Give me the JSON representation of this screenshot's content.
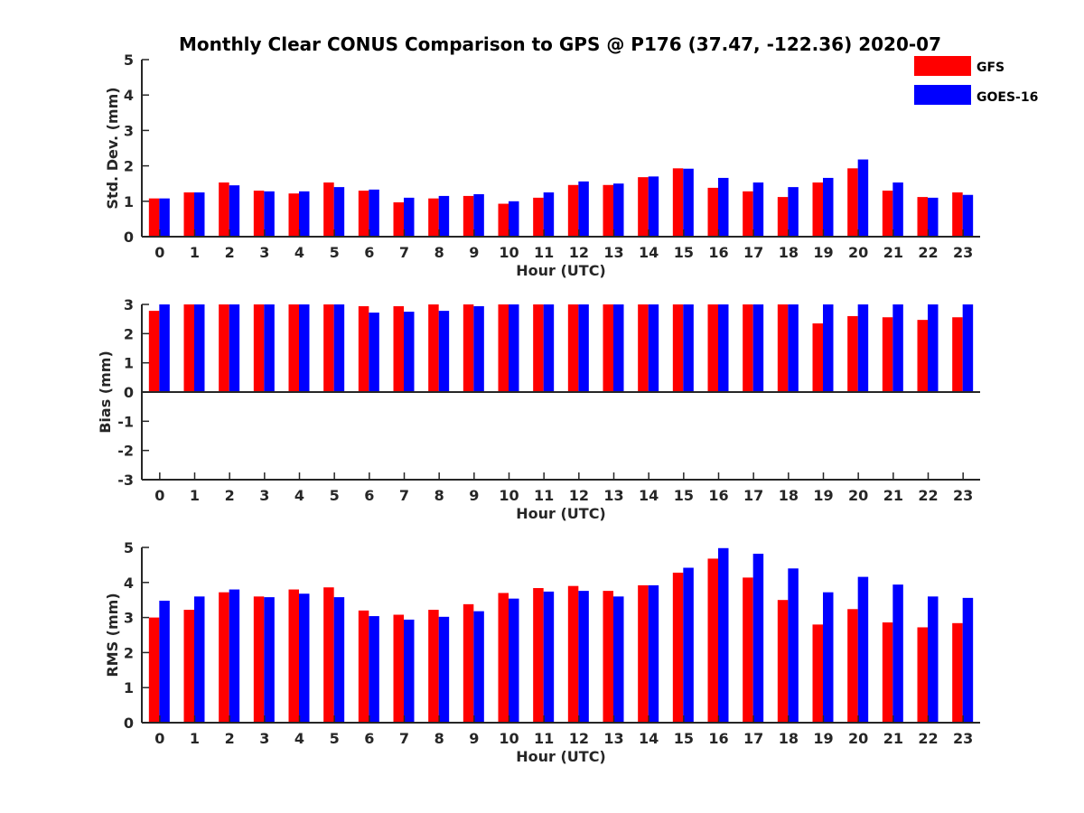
{
  "title": "Monthly Clear CONUS Comparison to GPS @ P176 (37.47, -122.36) 2020-07",
  "legend": {
    "placement": "top-right",
    "items": [
      {
        "label": "GFS",
        "color": "#ff0000"
      },
      {
        "label": "GOES-16",
        "color": "#0000ff"
      }
    ]
  },
  "chart_data": [
    {
      "type": "bar",
      "xlabel": "Hour (UTC)",
      "ylabel": "Std. Dev. (mm)",
      "ylim": [
        0,
        5
      ],
      "yticks": [
        "0",
        "1",
        "2",
        "3",
        "4",
        "5"
      ],
      "categories": [
        "0",
        "1",
        "2",
        "3",
        "4",
        "5",
        "6",
        "7",
        "8",
        "9",
        "10",
        "11",
        "12",
        "13",
        "14",
        "15",
        "16",
        "17",
        "18",
        "19",
        "20",
        "21",
        "22",
        "23"
      ],
      "series": [
        {
          "name": "GFS",
          "color": "#ff0000",
          "values": [
            1.08,
            1.25,
            1.53,
            1.3,
            1.22,
            1.53,
            1.3,
            0.97,
            1.08,
            1.15,
            0.93,
            1.1,
            1.46,
            1.46,
            1.68,
            1.93,
            1.38,
            1.28,
            1.12,
            1.53,
            1.93,
            1.3,
            1.12,
            1.25
          ]
        },
        {
          "name": "GOES-16",
          "color": "#0000ff",
          "values": [
            1.08,
            1.25,
            1.45,
            1.28,
            1.28,
            1.4,
            1.33,
            1.1,
            1.15,
            1.2,
            1.0,
            1.25,
            1.56,
            1.5,
            1.7,
            1.92,
            1.66,
            1.53,
            1.4,
            1.66,
            2.18,
            1.53,
            1.1,
            1.18
          ]
        }
      ]
    },
    {
      "type": "bar",
      "xlabel": "Hour (UTC)",
      "ylabel": "Bias (mm)",
      "ylim": [
        -3,
        3
      ],
      "yticks": [
        "-3",
        "-2",
        "-1",
        "0",
        "1",
        "2",
        "3"
      ],
      "categories": [
        "0",
        "1",
        "2",
        "3",
        "4",
        "5",
        "6",
        "7",
        "8",
        "9",
        "10",
        "11",
        "12",
        "13",
        "14",
        "15",
        "16",
        "17",
        "18",
        "19",
        "20",
        "21",
        "22",
        "23"
      ],
      "series": [
        {
          "name": "GFS",
          "color": "#ff0000",
          "values": [
            2.78,
            3,
            3,
            3,
            3,
            3,
            2.94,
            2.94,
            3,
            3,
            3,
            3,
            3,
            3,
            3,
            3,
            3,
            3,
            3,
            2.35,
            2.6,
            2.56,
            2.47,
            2.56
          ]
        },
        {
          "name": "GOES-16",
          "color": "#0000ff",
          "values": [
            3,
            3,
            3,
            3,
            3,
            3,
            2.72,
            2.75,
            2.78,
            2.94,
            3,
            3,
            3,
            3,
            3,
            3,
            3,
            3,
            3,
            3,
            3,
            3,
            3,
            3
          ]
        }
      ]
    },
    {
      "type": "bar",
      "xlabel": "Hour (UTC)",
      "ylabel": "RMS (mm)",
      "ylim": [
        0,
        5
      ],
      "yticks": [
        "0",
        "1",
        "2",
        "3",
        "4",
        "5"
      ],
      "categories": [
        "0",
        "1",
        "2",
        "3",
        "4",
        "5",
        "6",
        "7",
        "8",
        "9",
        "10",
        "11",
        "12",
        "13",
        "14",
        "15",
        "16",
        "17",
        "18",
        "19",
        "20",
        "21",
        "22",
        "23"
      ],
      "series": [
        {
          "name": "GFS",
          "color": "#ff0000",
          "values": [
            3.0,
            3.22,
            3.72,
            3.6,
            3.8,
            3.86,
            3.2,
            3.08,
            3.22,
            3.38,
            3.7,
            3.84,
            3.9,
            3.76,
            3.92,
            4.28,
            4.68,
            4.14,
            3.5,
            2.8,
            3.24,
            2.86,
            2.72,
            2.84
          ]
        },
        {
          "name": "GOES-16",
          "color": "#0000ff",
          "values": [
            3.48,
            3.6,
            3.8,
            3.58,
            3.68,
            3.58,
            3.04,
            2.94,
            3.02,
            3.18,
            3.54,
            3.74,
            3.76,
            3.6,
            3.92,
            4.42,
            4.98,
            4.82,
            4.4,
            3.72,
            4.16,
            3.94,
            3.6,
            3.56
          ]
        }
      ]
    }
  ]
}
